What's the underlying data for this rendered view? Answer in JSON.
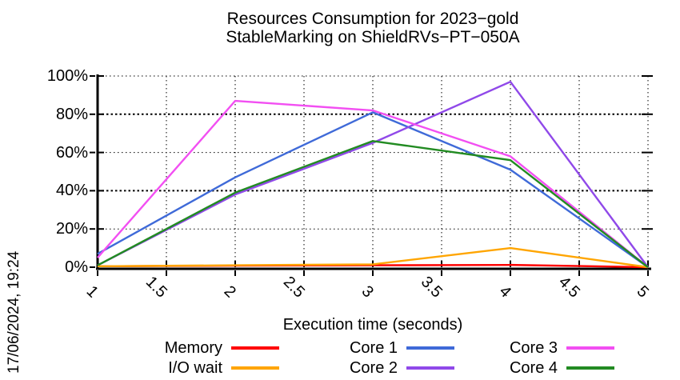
{
  "title": {
    "line1": "Resources Consumption for 2023−gold",
    "line2": "StableMarking on ShieldRVs−PT−050A"
  },
  "timestamp_label": "17/06/2024, 19:24",
  "chart_data": {
    "type": "line",
    "title": "Resources Consumption for 2023−gold StableMarking on ShieldRVs−PT−050A",
    "xlabel": "Execution time (seconds)",
    "ylabel": "",
    "grid": true,
    "legend_position": "bottom",
    "legend_columns": 3,
    "xlim": [
      1,
      5
    ],
    "ylim": [
      0,
      100
    ],
    "x_ticks": [
      "1",
      "1.5",
      "2",
      "2.5",
      "3",
      "3.5",
      "4",
      "4.5",
      "5"
    ],
    "x_tick_values": [
      1,
      1.5,
      2,
      2.5,
      3,
      3.5,
      4,
      4.5,
      5
    ],
    "y_ticks": [
      "0%",
      "20%",
      "40%",
      "60%",
      "80%",
      "100%"
    ],
    "y_tick_values": [
      0,
      20,
      40,
      60,
      80,
      100
    ],
    "bold_gridlines_y": [
      40,
      80
    ],
    "x": [
      1,
      2,
      3,
      4,
      5
    ],
    "series": [
      {
        "name": "Memory",
        "color": "#ff0000",
        "values": [
          0.5,
          0.8,
          1,
          1.2,
          0
        ]
      },
      {
        "name": "I/O wait",
        "color": "#ffa500",
        "values": [
          0.5,
          1,
          1.5,
          10,
          0
        ]
      },
      {
        "name": "Core 1",
        "color": "#3f6ad8",
        "values": [
          7,
          47,
          81,
          51,
          0
        ]
      },
      {
        "name": "Core 2",
        "color": "#9049e9",
        "values": [
          1,
          38,
          65,
          97,
          0
        ]
      },
      {
        "name": "Core 3",
        "color": "#f24ff2",
        "values": [
          5,
          87,
          82,
          58,
          0
        ]
      },
      {
        "name": "Core 4",
        "color": "#228b22",
        "values": [
          1,
          39,
          66,
          56,
          0
        ]
      }
    ]
  }
}
